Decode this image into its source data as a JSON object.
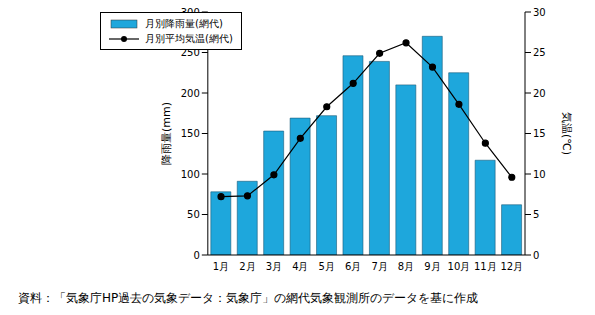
{
  "chart_data": {
    "type": "bar",
    "categories": [
      "1月",
      "2月",
      "3月",
      "4月",
      "5月",
      "6月",
      "7月",
      "8月",
      "9月",
      "10月",
      "11月",
      "12月"
    ],
    "series": [
      {
        "name": "月別降雨量(網代)",
        "type": "bar",
        "color": "#1ea7dc",
        "values": [
          78,
          91,
          153,
          169,
          172,
          246,
          239,
          210,
          270,
          225,
          117,
          62
        ]
      },
      {
        "name": "月別平均気温(網代)",
        "type": "line",
        "color": "#000000",
        "marker": "circle",
        "axis": "y2",
        "values": [
          7.2,
          7.3,
          9.9,
          14.4,
          18.3,
          21.2,
          24.9,
          26.2,
          23.2,
          18.6,
          13.8,
          9.6
        ]
      }
    ],
    "y_label": "降雨量(mm)",
    "y2_label": "気温(℃)",
    "ylim": [
      0,
      300
    ],
    "yticks": [
      0,
      50,
      100,
      150,
      200,
      250,
      300
    ],
    "y2lim": [
      0,
      30
    ],
    "y2ticks": [
      0,
      5,
      10,
      15,
      20,
      25,
      30
    ],
    "grid": false,
    "legend": "upper left",
    "source": "資料：「気象庁HP過去の気象データ：気象庁」の網代気象観測所のデータを基に作成"
  }
}
